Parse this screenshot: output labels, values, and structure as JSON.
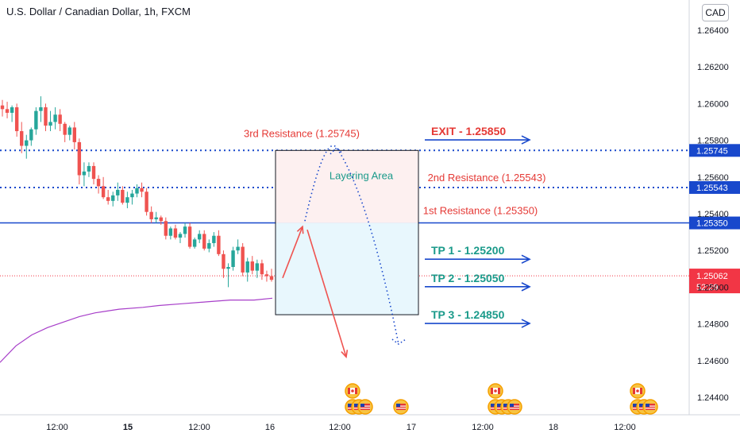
{
  "chart_title": "U.S. Dollar / Canadian Dollar, 1h, FXCM",
  "currency_button": "CAD",
  "colors": {
    "up": "#26a69a",
    "down": "#ef5350",
    "level_line": "#1848cc",
    "ma_line": "#a73ec9",
    "resistance_text": "#e53935",
    "tp_text": "#1a9a8a",
    "exit_text": "#e53935",
    "price_tag": "#1848cc",
    "current_price_tag": "#f23645",
    "layer_top_fill": "#fdf0f0",
    "layer_bottom_fill": "#e8f7fd"
  },
  "chart_data": {
    "type": "candlestick",
    "title": "U.S. Dollar / Canadian Dollar, 1h, FXCM",
    "ylim": [
      1.2432,
      1.2662
    ],
    "y_ticks": [
      "1.26400",
      "1.26200",
      "1.26000",
      "1.25800",
      "1.25600",
      "1.25400",
      "1.25200",
      "1.25000",
      "1.24800",
      "1.24600",
      "1.24400"
    ],
    "x_ticks": [
      {
        "label": "12:00",
        "bold": false
      },
      {
        "label": "15",
        "bold": true
      },
      {
        "label": "12:00",
        "bold": false
      },
      {
        "label": "16",
        "bold": false
      },
      {
        "label": "12:00",
        "bold": false
      },
      {
        "label": "17",
        "bold": false
      },
      {
        "label": "12:00",
        "bold": false
      },
      {
        "label": "18",
        "bold": false
      },
      {
        "label": "12:00",
        "bold": false
      }
    ],
    "candles": [
      [
        1.2599,
        1.2602,
        1.2593,
        1.2597
      ],
      [
        1.2597,
        1.2601,
        1.2592,
        1.2595
      ],
      [
        1.2595,
        1.2599,
        1.259,
        1.2598
      ],
      [
        1.2598,
        1.26,
        1.2582,
        1.2585
      ],
      [
        1.2585,
        1.259,
        1.2573,
        1.2577
      ],
      [
        1.2577,
        1.2583,
        1.257,
        1.258
      ],
      [
        1.258,
        1.2587,
        1.2577,
        1.2586
      ],
      [
        1.2586,
        1.2598,
        1.2583,
        1.2596
      ],
      [
        1.2596,
        1.2604,
        1.259,
        1.2598
      ],
      [
        1.2598,
        1.26,
        1.2585,
        1.2588
      ],
      [
        1.2588,
        1.2596,
        1.2585,
        1.259
      ],
      [
        1.259,
        1.2598,
        1.2586,
        1.2594
      ],
      [
        1.2594,
        1.2597,
        1.2585,
        1.2589
      ],
      [
        1.2589,
        1.259,
        1.2579,
        1.2583
      ],
      [
        1.2583,
        1.2588,
        1.258,
        1.2587
      ],
      [
        1.2587,
        1.259,
        1.2575,
        1.2579
      ],
      [
        1.2579,
        1.2581,
        1.2556,
        1.2561
      ],
      [
        1.2561,
        1.2568,
        1.2555,
        1.2563
      ],
      [
        1.2563,
        1.2568,
        1.256,
        1.2566
      ],
      [
        1.2566,
        1.2568,
        1.2556,
        1.2559
      ],
      [
        1.2559,
        1.2561,
        1.2551,
        1.2555
      ],
      [
        1.2555,
        1.256,
        1.2548,
        1.2549
      ],
      [
        1.2549,
        1.2553,
        1.2545,
        1.2547
      ],
      [
        1.2547,
        1.2552,
        1.2544,
        1.255
      ],
      [
        1.255,
        1.2557,
        1.2547,
        1.2553
      ],
      [
        1.2553,
        1.2555,
        1.2545,
        1.2546
      ],
      [
        1.2546,
        1.2552,
        1.2543,
        1.2549
      ],
      [
        1.2549,
        1.2553,
        1.2545,
        1.2551
      ],
      [
        1.2551,
        1.2556,
        1.2549,
        1.2554
      ],
      [
        1.2554,
        1.2557,
        1.2549,
        1.2552
      ],
      [
        1.2552,
        1.2554,
        1.2539,
        1.2541
      ],
      [
        1.2541,
        1.2544,
        1.2535,
        1.2537
      ],
      [
        1.2537,
        1.2541,
        1.2535,
        1.2538
      ],
      [
        1.2538,
        1.2539,
        1.2534,
        1.2536
      ],
      [
        1.2536,
        1.2538,
        1.2526,
        1.2528
      ],
      [
        1.2528,
        1.2533,
        1.2526,
        1.2532
      ],
      [
        1.2532,
        1.2534,
        1.2526,
        1.2527
      ],
      [
        1.2527,
        1.253,
        1.2524,
        1.2529
      ],
      [
        1.2529,
        1.2535,
        1.2527,
        1.2533
      ],
      [
        1.2533,
        1.2535,
        1.2521,
        1.2522
      ],
      [
        1.2522,
        1.2527,
        1.2521,
        1.2526
      ],
      [
        1.2526,
        1.2531,
        1.2524,
        1.2529
      ],
      [
        1.2529,
        1.2531,
        1.252,
        1.2521
      ],
      [
        1.2521,
        1.2526,
        1.2519,
        1.2524
      ],
      [
        1.2524,
        1.253,
        1.2522,
        1.2528
      ],
      [
        1.2528,
        1.2531,
        1.2517,
        1.2518
      ],
      [
        1.2518,
        1.252,
        1.2505,
        1.251
      ],
      [
        1.251,
        1.2513,
        1.25,
        1.2511
      ],
      [
        1.2511,
        1.2522,
        1.2509,
        1.252
      ],
      [
        1.252,
        1.2526,
        1.2518,
        1.2522
      ],
      [
        1.2522,
        1.2524,
        1.2506,
        1.2508
      ],
      [
        1.2508,
        1.2516,
        1.2503,
        1.2514
      ],
      [
        1.2514,
        1.2517,
        1.2507,
        1.2509
      ],
      [
        1.2509,
        1.2515,
        1.2505,
        1.2513
      ],
      [
        1.2513,
        1.2515,
        1.2504,
        1.2507
      ],
      [
        1.2507,
        1.2509,
        1.2503,
        1.2506
      ],
      [
        1.2506,
        1.251,
        1.2503,
        1.2504
      ]
    ],
    "moving_average": [
      [
        0,
        1.2459
      ],
      [
        20,
        1.2468
      ],
      [
        40,
        1.2474
      ],
      [
        60,
        1.2478
      ],
      [
        80,
        1.2481
      ],
      [
        100,
        1.2484
      ],
      [
        120,
        1.2486
      ],
      [
        150,
        1.2488
      ],
      [
        180,
        1.2489
      ],
      [
        200,
        1.249
      ],
      [
        230,
        1.2491
      ],
      [
        260,
        1.2492
      ],
      [
        290,
        1.2493
      ],
      [
        320,
        1.2493
      ],
      [
        343,
        1.2494
      ]
    ],
    "levels": [
      {
        "price": 1.25745,
        "style": "dotted",
        "tag": "1.25745"
      },
      {
        "price": 1.25543,
        "style": "dotted",
        "tag": "1.25543"
      },
      {
        "price": 1.2535,
        "style": "solid",
        "tag": "1.25350"
      }
    ],
    "current_price": {
      "price": 1.25062,
      "tag": "1.25062",
      "countdown": "52:29"
    },
    "layering_box": {
      "top": 1.25745,
      "mid": 1.2535,
      "bottom": 1.2485,
      "label": "Layering Area"
    },
    "resistance_labels": [
      {
        "text": "3rd Resistance (1.25745)",
        "price": 1.25745
      },
      {
        "text": "2nd Resistance (1.25543)",
        "price": 1.25543
      },
      {
        "text": "1st Resistance (1.25350)",
        "price": 1.2535
      }
    ],
    "targets": [
      {
        "text": "EXIT - 1.25850",
        "price": 1.2585,
        "kind": "exit"
      },
      {
        "text": "TP 1 - 1.25200",
        "price": 1.252,
        "kind": "tp"
      },
      {
        "text": "TP 2 - 1.25050",
        "price": 1.2505,
        "kind": "tp"
      },
      {
        "text": "TP 3 - 1.24850",
        "price": 1.2485,
        "kind": "tp"
      }
    ],
    "path_red": [
      [
        1.2505,
        1.2533
      ],
      [
        1.2533,
        1.2462
      ]
    ],
    "path_dotted": [
      1.2536,
      1.2576,
      1.2469
    ],
    "events": [
      {
        "flags": [
          "ca"
        ]
      },
      {
        "flags": [
          "us",
          "us",
          "us"
        ]
      },
      {
        "flags": [
          "us"
        ]
      },
      {
        "flags": [
          "ca"
        ]
      },
      {
        "flags": [
          "us",
          "us",
          "us",
          "us"
        ]
      },
      {
        "flags": [
          "ca"
        ]
      },
      {
        "flags": [
          "us",
          "us",
          "us"
        ]
      }
    ]
  }
}
